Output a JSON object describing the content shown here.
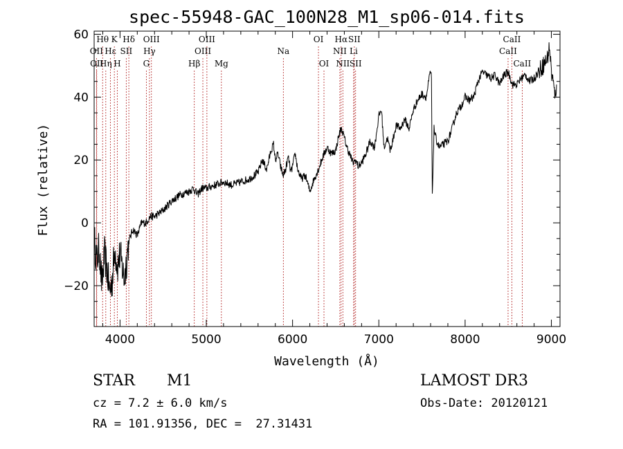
{
  "chart_data": {
    "type": "line",
    "title": "spec-55948-GAC_100N28_M1_sp06-014.fits",
    "xlabel": "Wavelength (Å)",
    "ylabel": "Flux (relative)",
    "xlim": [
      3700,
      9100
    ],
    "ylim": [
      -33,
      61
    ],
    "xticks": [
      4000,
      5000,
      6000,
      7000,
      8000,
      9000
    ],
    "yticks": [
      -20,
      0,
      20,
      40,
      60
    ],
    "ytick_labels": [
      "−20",
      "0",
      "20",
      "40",
      "60"
    ],
    "series": [
      {
        "name": "flux",
        "x": [
          3700,
          3730,
          3760,
          3790,
          3820,
          3850,
          3880,
          3910,
          3940,
          3970,
          4000,
          4050,
          4100,
          4150,
          4200,
          4250,
          4300,
          4350,
          4400,
          4500,
          4600,
          4700,
          4800,
          4850,
          4900,
          4950,
          5000,
          5100,
          5200,
          5300,
          5400,
          5500,
          5600,
          5650,
          5700,
          5750,
          5780,
          5800,
          5830,
          5860,
          5890,
          5920,
          5950,
          5980,
          6000,
          6030,
          6060,
          6100,
          6150,
          6200,
          6250,
          6300,
          6350,
          6400,
          6450,
          6500,
          6530,
          6560,
          6580,
          6600,
          6630,
          6660,
          6700,
          6730,
          6760,
          6800,
          6850,
          6900,
          6950,
          7000,
          7030,
          7060,
          7100,
          7130,
          7160,
          7200,
          7250,
          7300,
          7350,
          7400,
          7450,
          7500,
          7550,
          7590,
          7600,
          7610,
          7620,
          7640,
          7660,
          7700,
          7750,
          7800,
          7850,
          7900,
          7950,
          8000,
          8050,
          8100,
          8150,
          8200,
          8250,
          8300,
          8350,
          8400,
          8450,
          8500,
          8550,
          8600,
          8650,
          8700,
          8750,
          8800,
          8850,
          8900,
          8950,
          8980,
          9000,
          9020,
          9040,
          9060
        ],
        "y": [
          -5,
          -12,
          -8,
          -20,
          -10,
          -15,
          -22,
          -18,
          -8,
          -14,
          -10,
          -18,
          -6,
          -2,
          -4,
          0,
          0,
          2,
          2,
          4,
          7,
          9,
          10,
          11,
          9,
          11,
          11,
          12,
          13,
          12,
          13,
          14,
          16,
          20,
          17,
          23,
          25,
          20,
          22,
          18,
          15,
          17,
          21,
          16,
          18,
          22,
          17,
          14,
          15,
          10,
          14,
          17,
          21,
          24,
          22,
          23,
          27,
          30,
          29,
          27,
          24,
          22,
          19,
          20,
          18,
          19,
          22,
          26,
          24,
          34,
          36,
          24,
          27,
          23,
          26,
          31,
          30,
          33,
          30,
          36,
          39,
          41,
          40,
          47,
          48,
          46,
          8,
          30,
          27,
          24,
          25,
          26,
          30,
          35,
          37,
          40,
          39,
          40,
          45,
          48,
          47,
          46,
          47,
          44,
          47,
          48,
          44,
          44,
          46,
          47,
          45,
          46,
          48,
          50,
          52,
          56,
          48,
          45,
          40,
          44
        ]
      }
    ],
    "spectral_lines": [
      {
        "label": "Hθ",
        "wl": 3798,
        "row": 1
      },
      {
        "label": "K",
        "wl": 3934,
        "row": 1
      },
      {
        "label": "Hδ",
        "wl": 4102,
        "row": 1
      },
      {
        "label": "OII",
        "wl": 3727,
        "row": 2
      },
      {
        "label": "Hε",
        "wl": 3889,
        "row": 2
      },
      {
        "label": "SII",
        "wl": 4072,
        "row": 2
      },
      {
        "label": "OII",
        "wl": 3730,
        "row": 3
      },
      {
        "label": "Hη",
        "wl": 3835,
        "row": 3
      },
      {
        "label": "H",
        "wl": 3969,
        "row": 3
      },
      {
        "label": "OIII",
        "wl": 4364,
        "row": 1
      },
      {
        "label": "Hγ",
        "wl": 4341,
        "row": 2
      },
      {
        "label": "G",
        "wl": 4305,
        "row": 3
      },
      {
        "label": "OIII",
        "wl": 5007,
        "row": 1
      },
      {
        "label": "OIII",
        "wl": 4960,
        "row": 2
      },
      {
        "label": "Hβ",
        "wl": 4861,
        "row": 3
      },
      {
        "label": "Mg",
        "wl": 5175,
        "row": 3
      },
      {
        "label": "Na",
        "wl": 5893,
        "row": 2
      },
      {
        "label": "OI",
        "wl": 6300,
        "row": 1
      },
      {
        "label": "OI",
        "wl": 6364,
        "row": 3
      },
      {
        "label": "Hα",
        "wl": 6563,
        "row": 1
      },
      {
        "label": "SII",
        "wl": 6716,
        "row": 1
      },
      {
        "label": "NII",
        "wl": 6548,
        "row": 2
      },
      {
        "label": "Li",
        "wl": 6708,
        "row": 2
      },
      {
        "label": "NII",
        "wl": 6583,
        "row": 3
      },
      {
        "label": "SII",
        "wl": 6731,
        "row": 3
      },
      {
        "label": "CaII",
        "wl": 8542,
        "row": 1
      },
      {
        "label": "CaII",
        "wl": 8498,
        "row": 2
      },
      {
        "label": "CaII",
        "wl": 8662,
        "row": 3
      }
    ]
  },
  "footer": {
    "object_class": "STAR",
    "subclass": "M1",
    "survey": "LAMOST DR3",
    "cz": "cz = 7.2 ± 6.0 km/s",
    "obs_date": "Obs-Date: 20120121",
    "coords": "RA = 101.91356, DEC =  27.31431"
  },
  "colors": {
    "line_marker": "#b22222",
    "ink": "#000000"
  }
}
